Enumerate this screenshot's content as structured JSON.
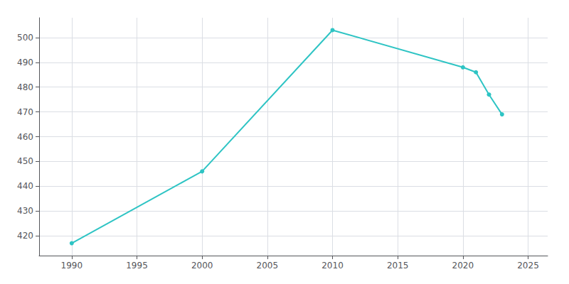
{
  "chart_data": {
    "type": "line",
    "x": [
      1990,
      2000,
      2010,
      2020,
      2021,
      2022,
      2023
    ],
    "values": [
      417,
      446,
      503,
      488,
      486,
      477,
      469
    ],
    "color": "#2ec4c4",
    "marker": "circle",
    "xlim": [
      1987.5,
      2026.5
    ],
    "ylim": [
      412,
      508
    ],
    "xticks": [
      1990,
      1995,
      2000,
      2005,
      2010,
      2015,
      2020,
      2025
    ],
    "yticks": [
      420,
      430,
      440,
      450,
      460,
      470,
      480,
      490,
      500
    ],
    "grid": true
  }
}
